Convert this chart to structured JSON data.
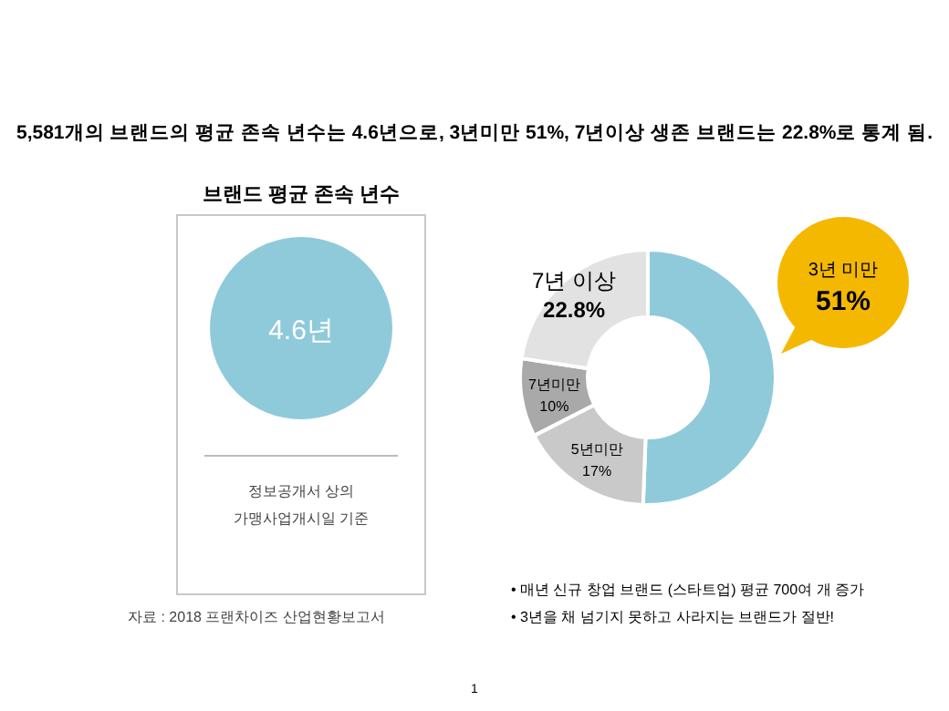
{
  "chart_data": [
    {
      "type": "other",
      "title": "브랜드 평균 존속 년수",
      "annotations": [
        "4.6년",
        "정보공개서 상의",
        "가맹사업개시일 기준",
        "자료 : 2018 프랜차이즈 산업현황보고서"
      ]
    },
    {
      "type": "donut",
      "title": "5,581개의 브랜드의 평균 존속 년수는 4.6년으로, 3년미만 51%, 7년이상 생존 브랜드는 22.8%로 통계 됨.",
      "categories": [
        "3년 미만",
        "5년미만",
        "7년미만",
        "7년 이상"
      ],
      "values": [
        51,
        17,
        10,
        22.8
      ],
      "colors": [
        "#8fcadb",
        "#c9c9c9",
        "#a9a9a9",
        "#e2e2e2"
      ],
      "value_labels": [
        "51%",
        "17%",
        "10%",
        "22.8%"
      ],
      "annotations": [
        "• 매년 신규 창업 브랜드 (스타트업) 평균 700여 개 증가",
        "• 3년을 채 넘기지 못하고 사라지는 브랜드가 절반!",
        "1"
      ]
    }
  ]
}
